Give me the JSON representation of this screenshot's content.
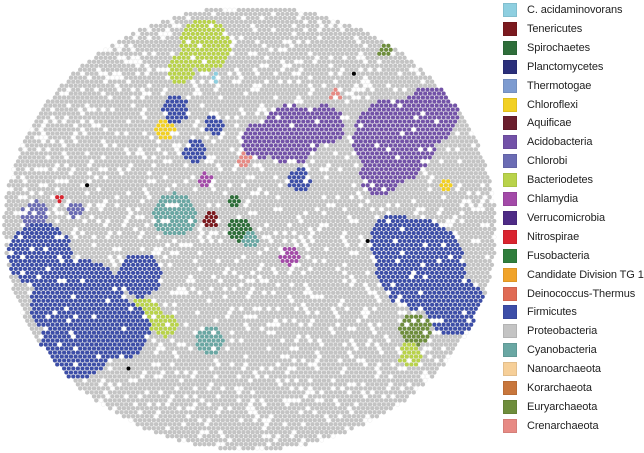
{
  "legend": {
    "items": [
      {
        "label": "C. acidaminovorans",
        "color": "#8ecfe0"
      },
      {
        "label": "Tenericutes",
        "color": "#7b1a1f"
      },
      {
        "label": "Spirochaetes",
        "color": "#2e6e3a"
      },
      {
        "label": "Planctomycetes",
        "color": "#2b2f7a"
      },
      {
        "label": "Thermotogae",
        "color": "#7d9bd0"
      },
      {
        "label": "Chloroflexi",
        "color": "#f2d022"
      },
      {
        "label": "Aquificae",
        "color": "#6a1e2e"
      },
      {
        "label": "Acidobacteria",
        "color": "#7352a8"
      },
      {
        "label": "Chlorobi",
        "color": "#6b6cb4"
      },
      {
        "label": "Bacteriodetes",
        "color": "#b9d34a"
      },
      {
        "label": "Chlamydia",
        "color": "#a34aa8"
      },
      {
        "label": "Verrucomicrobia",
        "color": "#4e2b86"
      },
      {
        "label": "Nitrospirae",
        "color": "#d9242f"
      },
      {
        "label": "Fusobacteria",
        "color": "#2f7d3c"
      },
      {
        "label": "Candidate Division TG 1",
        "color": "#f0a32a"
      },
      {
        "label": "Deinococcus-Thermus",
        "color": "#e06b55"
      },
      {
        "label": "Firmicutes",
        "color": "#3d4ea8"
      },
      {
        "label": "Proteobacteria",
        "color": "#c4c4c4"
      },
      {
        "label": "Cyanobacteria",
        "color": "#6aa7a3"
      },
      {
        "label": "Nanoarchaeota",
        "color": "#f6cf98"
      },
      {
        "label": "Korarchaeota",
        "color": "#c8763c"
      },
      {
        "label": "Euryarchaeota",
        "color": "#6e8d3c"
      },
      {
        "label": "Crenarchaeota",
        "color": "#e78a84"
      }
    ]
  },
  "map": {
    "background_color": "#c4c4c4",
    "regions": [
      {
        "phylum": "Firmicutes",
        "color": "#3d4ea8"
      },
      {
        "phylum": "Acidobacteria",
        "color": "#7352a8"
      },
      {
        "phylum": "Bacteriodetes",
        "color": "#b9d34a"
      },
      {
        "phylum": "Cyanobacteria",
        "color": "#6aa7a3"
      },
      {
        "phylum": "Chloroflexi",
        "color": "#f2d022"
      },
      {
        "phylum": "Tenericutes",
        "color": "#7b1a1f"
      },
      {
        "phylum": "Spirochaetes",
        "color": "#2e6e3a"
      },
      {
        "phylum": "Chlamydia",
        "color": "#a34aa8"
      },
      {
        "phylum": "Chlorobi",
        "color": "#6b6cb4"
      },
      {
        "phylum": "Euryarchaeota",
        "color": "#6e8d3c"
      },
      {
        "phylum": "Crenarchaeota",
        "color": "#e78a84"
      },
      {
        "phylum": "Nitrospirae",
        "color": "#d9242f"
      },
      {
        "phylum": "C. acidaminovorans",
        "color": "#8ecfe0"
      }
    ]
  }
}
